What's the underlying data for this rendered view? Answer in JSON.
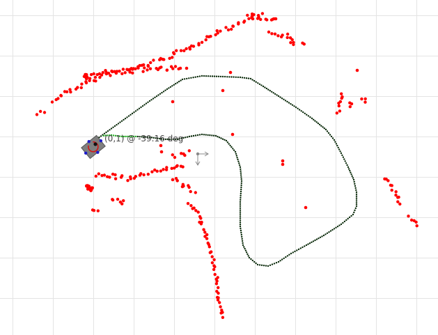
{
  "robot": {
    "pose_label": "(0,1) @ -39.16 deg",
    "body_color": "#7f7f7f",
    "marker_color": "#1a1acc",
    "heading_color": "#d01818"
  },
  "colors": {
    "obstacle": "#ff0000",
    "path": "#0a2a0a",
    "path_start": "#22aa22",
    "frame_gizmo": "#888888"
  },
  "icons": {
    "goal_frame": "axis-gizmo-icon"
  }
}
